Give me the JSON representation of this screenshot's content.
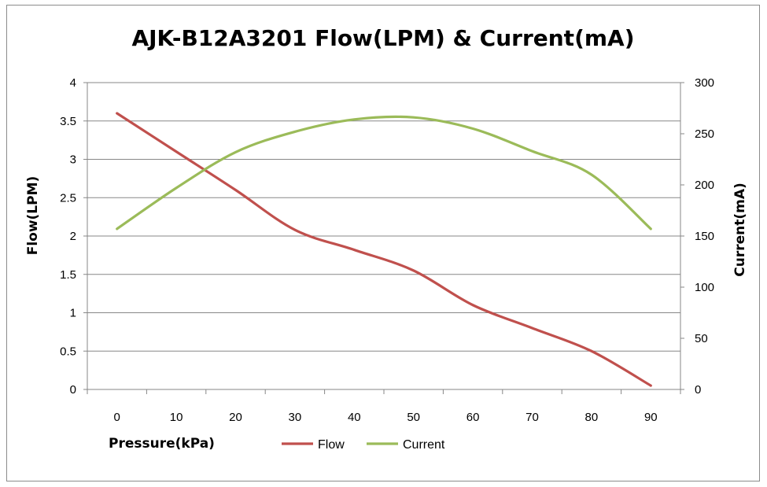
{
  "chart_data": {
    "type": "line",
    "title": "AJK-B12A3201 Flow(LPM) & Current(mA)",
    "xlabel": "Pressure(kPa)",
    "ylabel": "Flow(LPM)",
    "y2label": "Current(mA)",
    "x": [
      0,
      10,
      20,
      30,
      40,
      50,
      60,
      70,
      80,
      90
    ],
    "x_ticks": [
      "0",
      "10",
      "20",
      "30",
      "40",
      "50",
      "60",
      "70",
      "80",
      "90"
    ],
    "y_ticks": [
      "0",
      "0.5",
      "1",
      "1.5",
      "2",
      "2.5",
      "3",
      "3.5",
      "4"
    ],
    "y2_ticks": [
      "0",
      "50",
      "100",
      "150",
      "200",
      "250",
      "300"
    ],
    "ylim": [
      0,
      4
    ],
    "y2lim": [
      0,
      300
    ],
    "grid": true,
    "legend_position": "bottom",
    "series": [
      {
        "name": "Flow",
        "axis": "left",
        "color": "#C0504D",
        "values": [
          3.6,
          3.1,
          2.6,
          2.08,
          1.82,
          1.55,
          1.1,
          0.8,
          0.5,
          0.05
        ]
      },
      {
        "name": "Current",
        "axis": "right",
        "color": "#9BBB59",
        "values": [
          157,
          197,
          232,
          252,
          264,
          266,
          255,
          233,
          210,
          157
        ]
      }
    ]
  }
}
